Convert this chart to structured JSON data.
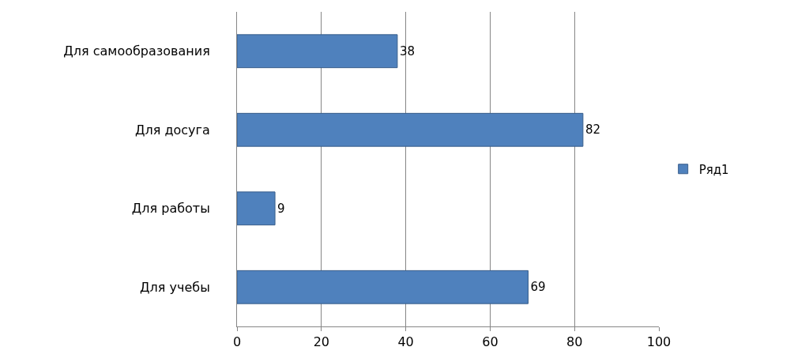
{
  "chart_data": {
    "type": "bar",
    "orientation": "horizontal",
    "categories": [
      "Для самообразования",
      "Для досуга",
      "Для работы",
      "Для учебы"
    ],
    "series": [
      {
        "name": "Ряд1",
        "color": "#4f81bd",
        "values": [
          38,
          82,
          9,
          69
        ]
      }
    ],
    "xlim": [
      0,
      100
    ],
    "xticks": [
      0,
      20,
      40,
      60,
      80,
      100
    ],
    "grid": "x",
    "legend": "right",
    "data_labels": true
  }
}
